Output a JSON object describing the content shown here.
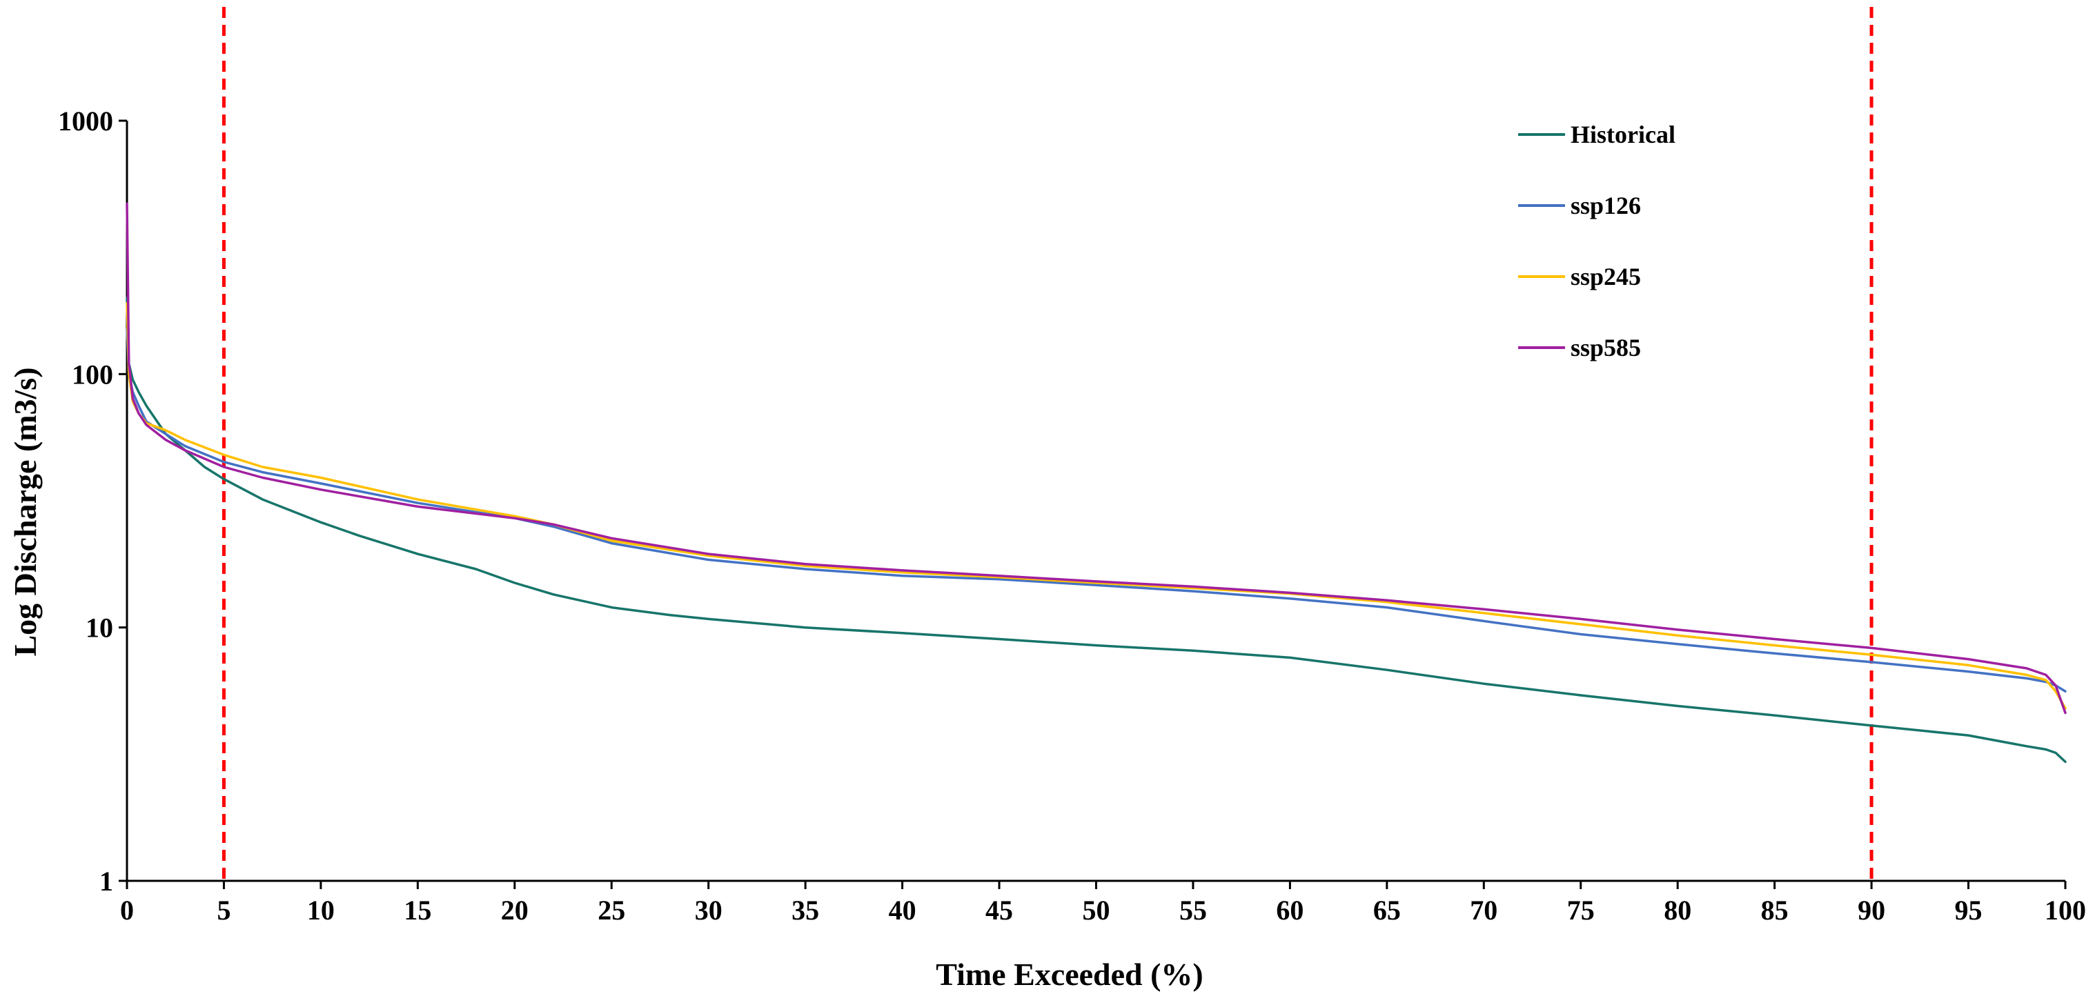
{
  "chart_data": {
    "type": "line",
    "title": "",
    "xlabel": "Time Exceeded (%)",
    "ylabel": "Log Discharge (m3/s)",
    "xlim": [
      0,
      100
    ],
    "ylim": [
      1,
      1000
    ],
    "yscale": "log",
    "xticks": [
      "0",
      "5",
      "10",
      "15",
      "20",
      "25",
      "30",
      "35",
      "40",
      "45",
      "50",
      "55",
      "60",
      "65",
      "70",
      "75",
      "80",
      "85",
      "90",
      "95",
      "100"
    ],
    "yticks": [
      "1",
      "10",
      "100",
      "1000"
    ],
    "legend_position": "top-right",
    "reference_lines": [
      {
        "axis": "x",
        "value": 5,
        "style": "dashed",
        "color": "#ff0000"
      },
      {
        "axis": "x",
        "value": 90,
        "style": "dashed",
        "color": "#ff0000"
      }
    ],
    "series": [
      {
        "name": "Historical",
        "color": "#17756a",
        "x": [
          0,
          0.1,
          0.3,
          0.6,
          1,
          2,
          3,
          4,
          5,
          7,
          10,
          12,
          15,
          18,
          20,
          22,
          25,
          28,
          30,
          35,
          40,
          45,
          50,
          55,
          60,
          65,
          70,
          75,
          80,
          85,
          90,
          95,
          98,
          99,
          99.5,
          100
        ],
        "y": [
          200,
          110,
          95,
          85,
          75,
          58,
          50,
          43,
          38.5,
          32,
          26,
          23,
          19.5,
          17,
          15,
          13.5,
          12,
          11.2,
          10.8,
          10,
          9.5,
          9,
          8.5,
          8.1,
          7.6,
          6.8,
          6.0,
          5.4,
          4.9,
          4.5,
          4.1,
          3.75,
          3.4,
          3.3,
          3.2,
          2.95
        ]
      },
      {
        "name": "ssp126",
        "color": "#4472c4",
        "x": [
          0,
          0.1,
          0.3,
          0.6,
          1,
          2,
          3,
          5,
          7,
          10,
          15,
          20,
          22,
          25,
          30,
          35,
          40,
          45,
          50,
          55,
          60,
          65,
          70,
          75,
          80,
          85,
          90,
          95,
          98,
          99,
          99.5,
          100
        ],
        "y": [
          150,
          100,
          85,
          75,
          65,
          58,
          52,
          45,
          41,
          37,
          31,
          27,
          25,
          21.5,
          18.5,
          17,
          16,
          15.5,
          14.7,
          13.9,
          13,
          12,
          10.6,
          9.4,
          8.6,
          7.9,
          7.3,
          6.7,
          6.3,
          6.1,
          5.9,
          5.6
        ]
      },
      {
        "name": "ssp245",
        "color": "#ffc000",
        "x": [
          0,
          0.1,
          0.3,
          0.6,
          1,
          2,
          3,
          5,
          7,
          10,
          15,
          20,
          22,
          25,
          30,
          35,
          40,
          45,
          50,
          55,
          60,
          65,
          70,
          75,
          80,
          85,
          90,
          95,
          98,
          99,
          99.5,
          100
        ],
        "y": [
          190,
          100,
          78,
          70,
          64,
          60,
          55,
          48,
          43,
          39,
          32,
          27.5,
          25.5,
          22,
          19.2,
          17.5,
          16.5,
          15.8,
          15,
          14.3,
          13.6,
          12.6,
          11.4,
          10.3,
          9.3,
          8.5,
          7.8,
          7.1,
          6.5,
          6.2,
          5.6,
          4.8
        ]
      },
      {
        "name": "ssp585",
        "color": "#a020a0",
        "x": [
          0,
          0.1,
          0.3,
          0.6,
          1,
          2,
          3,
          5,
          7,
          10,
          15,
          20,
          22,
          25,
          30,
          35,
          40,
          45,
          50,
          55,
          60,
          65,
          70,
          75,
          80,
          85,
          90,
          95,
          98,
          99,
          99.5,
          100
        ],
        "y": [
          470,
          110,
          80,
          70,
          63,
          55,
          50,
          43,
          39,
          35,
          30,
          27,
          25.5,
          22.5,
          19.5,
          17.8,
          16.8,
          16,
          15.2,
          14.5,
          13.7,
          12.8,
          11.8,
          10.8,
          9.8,
          9,
          8.3,
          7.5,
          6.9,
          6.5,
          5.9,
          4.6
        ]
      }
    ]
  }
}
